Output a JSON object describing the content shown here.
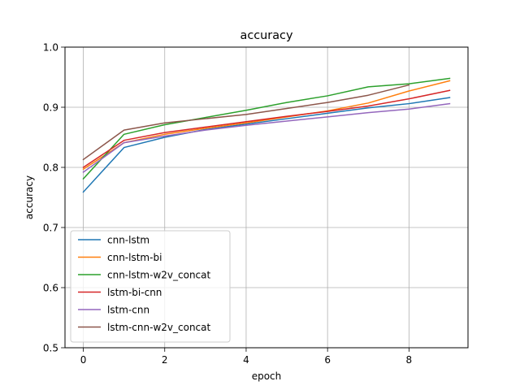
{
  "chart_data": {
    "type": "line",
    "title": "accuracy",
    "xlabel": "epoch",
    "ylabel": "accuracy",
    "xlim": [
      -0.45,
      9.45
    ],
    "ylim": [
      0.5,
      1.0
    ],
    "xticks": [
      0,
      2,
      4,
      6,
      8
    ],
    "yticks": [
      0.5,
      0.6,
      0.7,
      0.8,
      0.9,
      1.0
    ],
    "xtick_labels": [
      "0",
      "2",
      "4",
      "6",
      "8"
    ],
    "ytick_labels": [
      "0.5",
      "0.6",
      "0.7",
      "0.8",
      "0.9",
      "1.0"
    ],
    "grid": true,
    "legend_position": "lower-left",
    "x": [
      0,
      1,
      2,
      3,
      4,
      5,
      6,
      7,
      8,
      9
    ],
    "series": [
      {
        "name": "cnn-lstm",
        "color": "#1f77b4",
        "x": [
          0,
          1,
          2,
          3,
          4,
          5,
          6,
          7,
          8,
          9
        ],
        "values": [
          0.759,
          0.833,
          0.85,
          0.863,
          0.872,
          0.881,
          0.89,
          0.899,
          0.906,
          0.916
        ]
      },
      {
        "name": "cnn-lstm-bi",
        "color": "#ff7f0e",
        "x": [
          0,
          1,
          2,
          3,
          4,
          5,
          6,
          7,
          8,
          9
        ],
        "values": [
          0.797,
          0.841,
          0.855,
          0.865,
          0.874,
          0.884,
          0.894,
          0.907,
          0.927,
          0.944
        ]
      },
      {
        "name": "cnn-lstm-w2v_concat",
        "color": "#2ca02c",
        "x": [
          0,
          1,
          2,
          3,
          4,
          5,
          6,
          7,
          8,
          9
        ],
        "values": [
          0.781,
          0.855,
          0.871,
          0.883,
          0.895,
          0.908,
          0.919,
          0.934,
          0.939,
          0.948
        ]
      },
      {
        "name": "lstm-bi-cnn",
        "color": "#d62728",
        "x": [
          0,
          1,
          2,
          3,
          4,
          5,
          6,
          7,
          8,
          9
        ],
        "values": [
          0.8,
          0.845,
          0.858,
          0.867,
          0.876,
          0.885,
          0.893,
          0.902,
          0.914,
          0.928
        ]
      },
      {
        "name": "lstm-cnn",
        "color": "#9467bd",
        "x": [
          0,
          1,
          2,
          3,
          4,
          5,
          6,
          7,
          8,
          9
        ],
        "values": [
          0.792,
          0.841,
          0.852,
          0.862,
          0.87,
          0.877,
          0.884,
          0.891,
          0.897,
          0.906
        ]
      },
      {
        "name": "lstm-cnn-w2v_concat",
        "color": "#8c564b",
        "x": [
          0,
          1,
          2,
          3,
          4,
          5,
          6,
          7,
          8
        ],
        "values": [
          0.813,
          0.862,
          0.874,
          0.881,
          0.888,
          0.898,
          0.908,
          0.92,
          0.937
        ]
      }
    ]
  }
}
